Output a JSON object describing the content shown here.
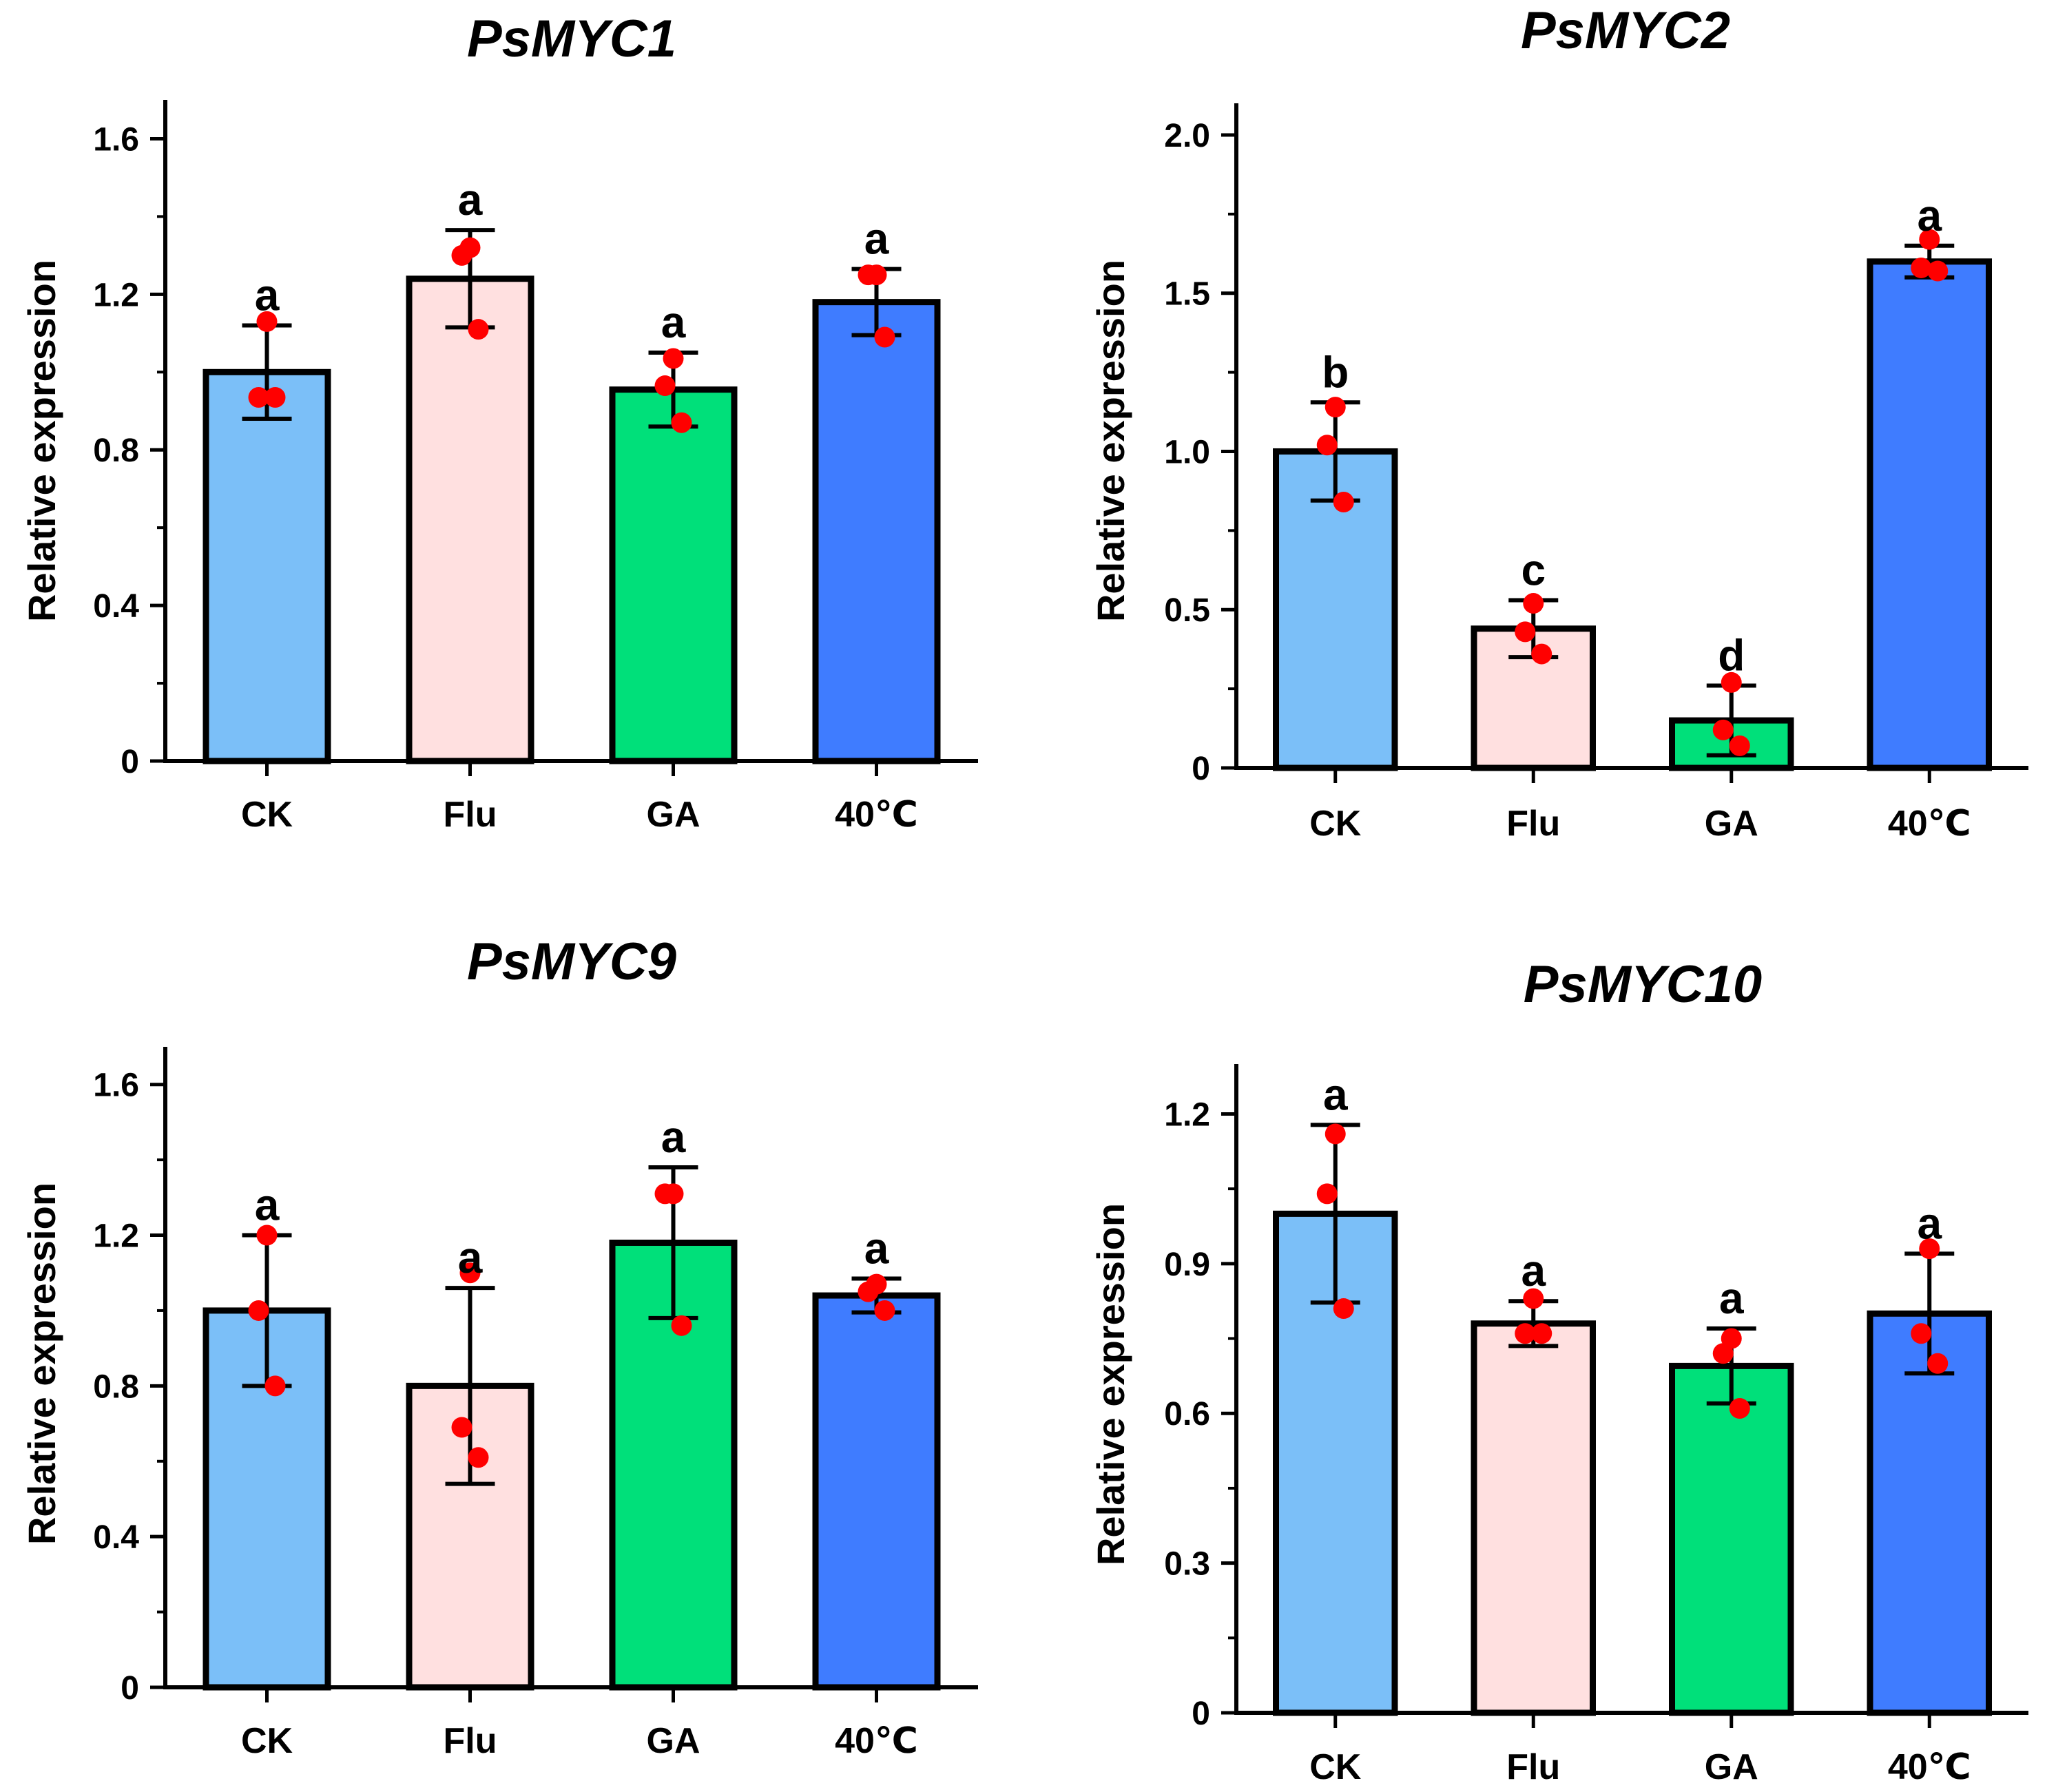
{
  "chart_data": [
    {
      "type": "bar",
      "title": "PsMYC1",
      "ylabel": "Relative expression",
      "xlabel": "",
      "ylim": [
        0,
        1.7
      ],
      "yticks": [
        0,
        0.4,
        0.8,
        1.2,
        1.6
      ],
      "ytick_labels": [
        "0",
        "0.4",
        "0.8",
        "1.2",
        "1.6"
      ],
      "categories": [
        "CK",
        "Flu",
        "GA",
        "40℃"
      ],
      "values": [
        1.0,
        1.24,
        0.955,
        1.18
      ],
      "errors": [
        0.12,
        0.125,
        0.095,
        0.085
      ],
      "points": [
        [
          1.13,
          0.935,
          0.935
        ],
        [
          1.32,
          1.3,
          1.11
        ],
        [
          1.035,
          0.965,
          0.87
        ],
        [
          1.25,
          1.25,
          1.09
        ]
      ],
      "significance": [
        "a",
        "a",
        "a",
        "a"
      ],
      "colors": [
        "#7bbff8",
        "#ffe0e0",
        "#00e07a",
        "#3f7cff"
      ]
    },
    {
      "type": "bar",
      "title": "PsMYC2",
      "ylabel": "Relative expression",
      "xlabel": "",
      "ylim": [
        0,
        2.1
      ],
      "yticks": [
        0,
        0.5,
        1.0,
        1.5,
        2.0
      ],
      "ytick_labels": [
        "0",
        "0.5",
        "1.0",
        "1.5",
        "2.0"
      ],
      "categories": [
        "CK",
        "Flu",
        "GA",
        "40℃"
      ],
      "values": [
        1.0,
        0.44,
        0.15,
        1.6
      ],
      "errors": [
        0.155,
        0.09,
        0.11,
        0.05
      ],
      "points": [
        [
          1.14,
          1.02,
          0.84
        ],
        [
          0.52,
          0.43,
          0.36
        ],
        [
          0.27,
          0.12,
          0.07
        ],
        [
          1.67,
          1.58,
          1.57
        ]
      ],
      "significance": [
        "b",
        "c",
        "d",
        "a"
      ],
      "colors": [
        "#7bbff8",
        "#ffe0e0",
        "#00e07a",
        "#3f7cff"
      ]
    },
    {
      "type": "bar",
      "title": "PsMYC9",
      "ylabel": "Relative expression",
      "xlabel": "",
      "ylim": [
        0,
        1.7
      ],
      "yticks": [
        0,
        0.4,
        0.8,
        1.2,
        1.6
      ],
      "ytick_labels": [
        "0",
        "0.4",
        "0.8",
        "1.2",
        "1.6"
      ],
      "categories": [
        "CK",
        "Flu",
        "GA",
        "40℃"
      ],
      "values": [
        1.0,
        0.8,
        1.18,
        1.04
      ],
      "errors": [
        0.2,
        0.26,
        0.2,
        0.045
      ],
      "points": [
        [
          1.2,
          1.0,
          0.8
        ],
        [
          1.1,
          0.69,
          0.61
        ],
        [
          1.31,
          1.31,
          0.96
        ],
        [
          1.07,
          1.05,
          1.0
        ]
      ],
      "significance": [
        "a",
        "a",
        "a",
        "a"
      ],
      "colors": [
        "#7bbff8",
        "#ffe0e0",
        "#00e07a",
        "#3f7cff"
      ]
    },
    {
      "type": "bar",
      "title": "PsMYC10",
      "ylabel": "Relative expression",
      "xlabel": "",
      "ylim": [
        0,
        1.3
      ],
      "yticks": [
        0,
        0.3,
        0.6,
        0.9,
        1.2
      ],
      "ytick_labels": [
        "0",
        "0.3",
        "0.6",
        "0.9",
        "1.2"
      ],
      "categories": [
        "CK",
        "Flu",
        "GA",
        "40℃"
      ],
      "values": [
        1.0,
        0.78,
        0.695,
        0.8
      ],
      "errors": [
        0.178,
        0.045,
        0.075,
        0.12
      ],
      "points": [
        [
          1.16,
          1.04,
          0.81
        ],
        [
          0.83,
          0.76,
          0.76
        ],
        [
          0.75,
          0.72,
          0.61
        ],
        [
          0.93,
          0.76,
          0.7
        ]
      ],
      "significance": [
        "a",
        "a",
        "a",
        "a"
      ],
      "colors": [
        "#7bbff8",
        "#ffe0e0",
        "#00e07a",
        "#3f7cff"
      ]
    }
  ]
}
